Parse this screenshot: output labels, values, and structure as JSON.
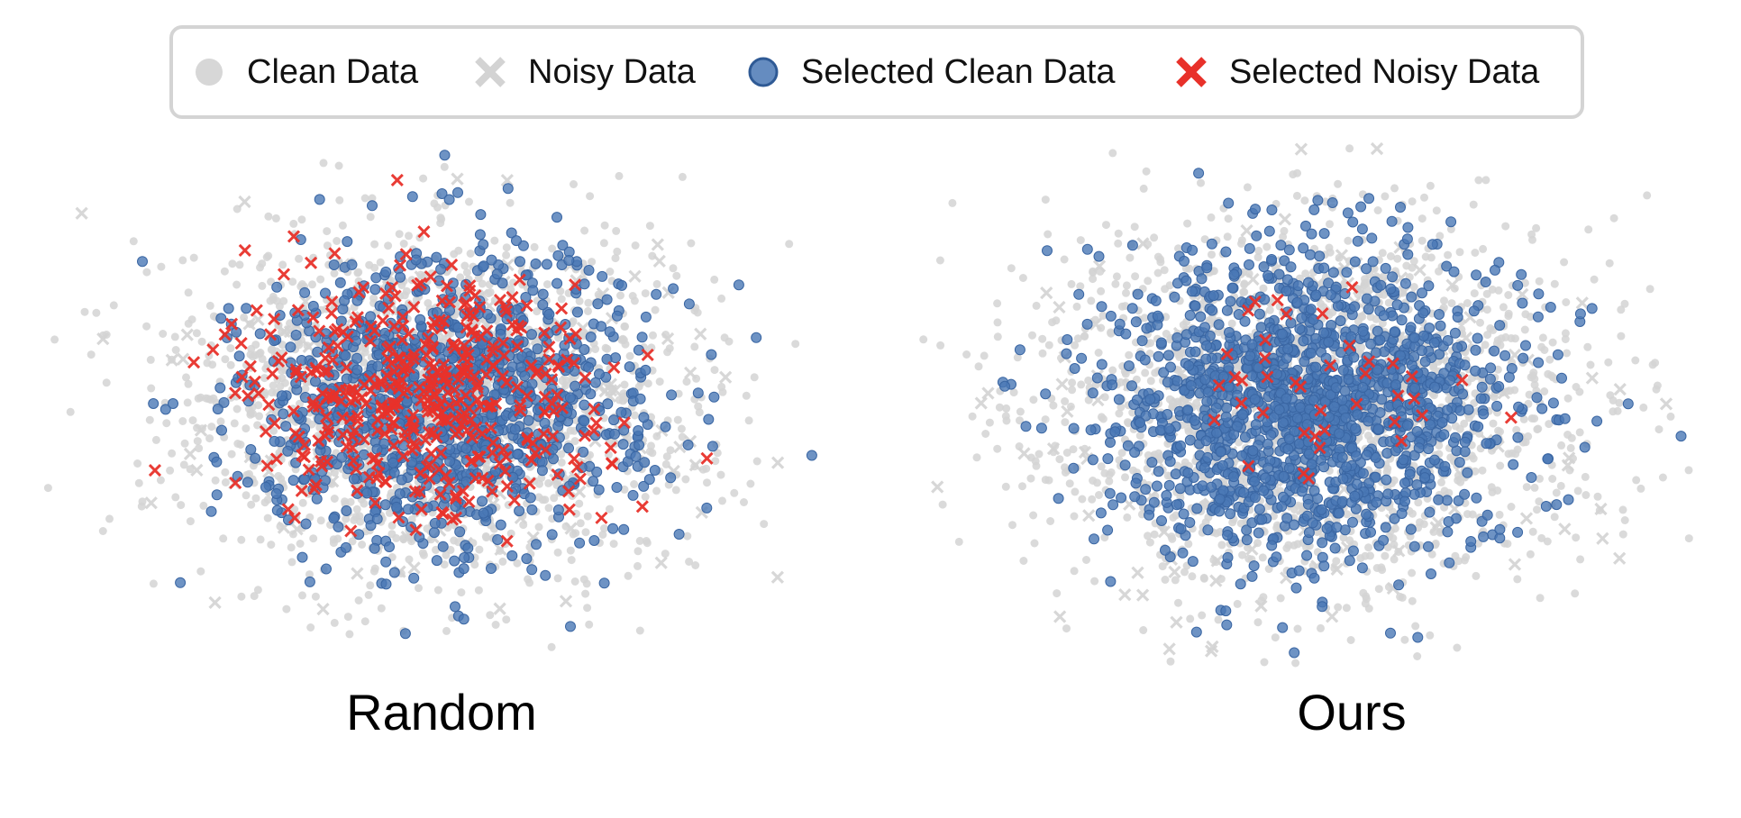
{
  "legend": {
    "items": [
      {
        "label": "Clean Data",
        "marker": "circle",
        "color": "#d3d3d3"
      },
      {
        "label": "Noisy Data",
        "marker": "x",
        "color": "#d3d3d3"
      },
      {
        "label": "Selected Clean Data",
        "marker": "circle",
        "color": "#4a78b5"
      },
      {
        "label": "Selected Noisy Data",
        "marker": "x",
        "color": "#e8312a"
      }
    ]
  },
  "panels": [
    {
      "title": "Random"
    },
    {
      "title": "Ours"
    }
  ],
  "chart_data": [
    {
      "type": "scatter",
      "title": "Random",
      "xlabel": "",
      "ylabel": "",
      "grid": false,
      "axes_visible": false,
      "xlim": [
        -4,
        4
      ],
      "ylim": [
        -3,
        3
      ],
      "series": [
        {
          "name": "Clean Data",
          "marker": "circle",
          "color": "#d3d3d3",
          "count": 1800,
          "spread": [
            1.25,
            0.95
          ],
          "center": [
            0,
            0
          ]
        },
        {
          "name": "Noisy Data",
          "marker": "x",
          "color": "#d3d3d3",
          "count": 160,
          "spread": [
            1.45,
            1.05
          ],
          "center": [
            0.2,
            0
          ]
        },
        {
          "name": "Selected Clean Data",
          "marker": "circle",
          "color": "#4a78b5",
          "count": 1100,
          "spread": [
            1.0,
            0.82
          ],
          "center": [
            0.1,
            0.05
          ]
        },
        {
          "name": "Selected Noisy Data",
          "marker": "x",
          "color": "#e8312a",
          "count": 420,
          "spread": [
            0.85,
            0.7
          ],
          "center": [
            -0.1,
            0.1
          ]
        }
      ]
    },
    {
      "type": "scatter",
      "title": "Ours",
      "xlabel": "",
      "ylabel": "",
      "grid": false,
      "axes_visible": false,
      "xlim": [
        -4,
        4
      ],
      "ylim": [
        -3,
        3
      ],
      "series": [
        {
          "name": "Clean Data",
          "marker": "circle",
          "color": "#d3d3d3",
          "count": 1900,
          "spread": [
            1.35,
            1.0
          ],
          "center": [
            0,
            0
          ]
        },
        {
          "name": "Noisy Data",
          "marker": "x",
          "color": "#d3d3d3",
          "count": 220,
          "spread": [
            1.5,
            1.1
          ],
          "center": [
            0.1,
            0
          ]
        },
        {
          "name": "Selected Clean Data",
          "marker": "circle",
          "color": "#4a78b5",
          "count": 1500,
          "spread": [
            1.0,
            0.85
          ],
          "center": [
            0,
            0
          ]
        },
        {
          "name": "Selected Noisy Data",
          "marker": "x",
          "color": "#e8312a",
          "count": 40,
          "spread": [
            0.7,
            0.55
          ],
          "center": [
            0,
            0
          ]
        }
      ]
    }
  ]
}
